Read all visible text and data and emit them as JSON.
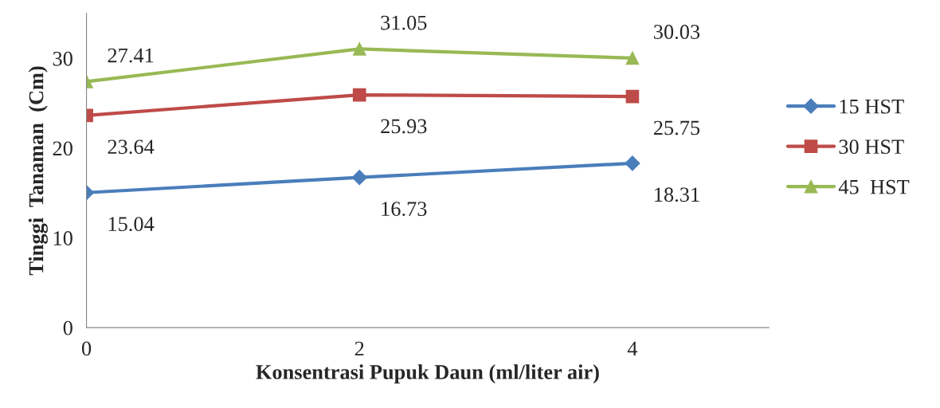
{
  "chart_data": {
    "type": "line",
    "xlabel": "Konsentrasi Pupuk Daun (ml/liter air)",
    "ylabel": "Tinggi  Tanaman  (Cm)",
    "x": [
      0,
      2,
      4
    ],
    "xlim": [
      0,
      5
    ],
    "xticks": [
      0,
      2,
      4
    ],
    "ylim": [
      0,
      35
    ],
    "yticks": [
      0,
      10,
      20,
      30
    ],
    "series": [
      {
        "name": "15 HST",
        "color": "#4a7ebb",
        "marker": "diamond",
        "values": [
          15.04,
          16.73,
          18.31
        ]
      },
      {
        "name": "30 HST",
        "color": "#be4b48",
        "marker": "square",
        "values": [
          23.64,
          25.93,
          25.75
        ]
      },
      {
        "name": "45  HST",
        "color": "#98b954",
        "marker": "triangle",
        "values": [
          27.41,
          31.05,
          30.03
        ]
      }
    ],
    "data_labels": true,
    "grid": false,
    "legend": "right",
    "line_style": "solid"
  }
}
